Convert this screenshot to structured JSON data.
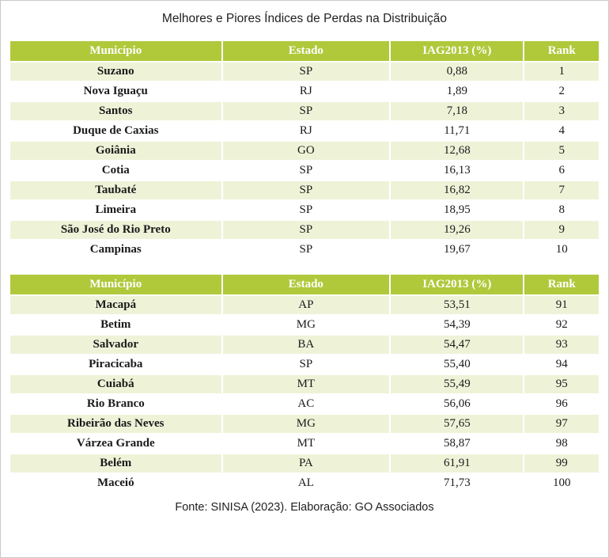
{
  "page": {
    "title": "Melhores e Piores Índices de Perdas na Distribuição",
    "footer": "Fonte: SINISA (2023). Elaboração: GO Associados"
  },
  "colors": {
    "header_background": "#AFC93B",
    "header_text": "#FFFFFF",
    "row_alternate_background": "#EEF3D8",
    "row_background": "#FFFFFF",
    "body_text": "#1A1A1A"
  },
  "chart_data": [
    {
      "type": "table",
      "title": "Melhores e Piores Índices de Perdas na Distribuição",
      "columns": [
        "Município",
        "Estado",
        "IAG2013 (%)",
        "Rank"
      ],
      "rows": [
        [
          "Suzano",
          "SP",
          "0,88",
          "1"
        ],
        [
          "Nova Iguaçu",
          "RJ",
          "1,89",
          "2"
        ],
        [
          "Santos",
          "SP",
          "7,18",
          "3"
        ],
        [
          "Duque de Caxias",
          "RJ",
          "11,71",
          "4"
        ],
        [
          "Goiânia",
          "GO",
          "12,68",
          "5"
        ],
        [
          "Cotia",
          "SP",
          "16,13",
          "6"
        ],
        [
          "Taubaté",
          "SP",
          "16,82",
          "7"
        ],
        [
          "Limeira",
          "SP",
          "18,95",
          "8"
        ],
        [
          "São José do Rio Preto",
          "SP",
          "19,26",
          "9"
        ],
        [
          "Campinas",
          "SP",
          "19,67",
          "10"
        ]
      ]
    },
    {
      "type": "table",
      "title": "Melhores e Piores Índices de Perdas na Distribuição",
      "columns": [
        "Município",
        "Estado",
        "IAG2013 (%)",
        "Rank"
      ],
      "rows": [
        [
          "Macapá",
          "AP",
          "53,51",
          "91"
        ],
        [
          "Betim",
          "MG",
          "54,39",
          "92"
        ],
        [
          "Salvador",
          "BA",
          "54,47",
          "93"
        ],
        [
          "Piracicaba",
          "SP",
          "55,40",
          "94"
        ],
        [
          "Cuiabá",
          "MT",
          "55,49",
          "95"
        ],
        [
          "Rio Branco",
          "AC",
          "56,06",
          "96"
        ],
        [
          "Ribeirão das Neves",
          "MG",
          "57,65",
          "97"
        ],
        [
          "Várzea Grande",
          "MT",
          "58,87",
          "98"
        ],
        [
          "Belém",
          "PA",
          "61,91",
          "99"
        ],
        [
          "Maceió",
          "AL",
          "71,73",
          "100"
        ]
      ]
    }
  ]
}
